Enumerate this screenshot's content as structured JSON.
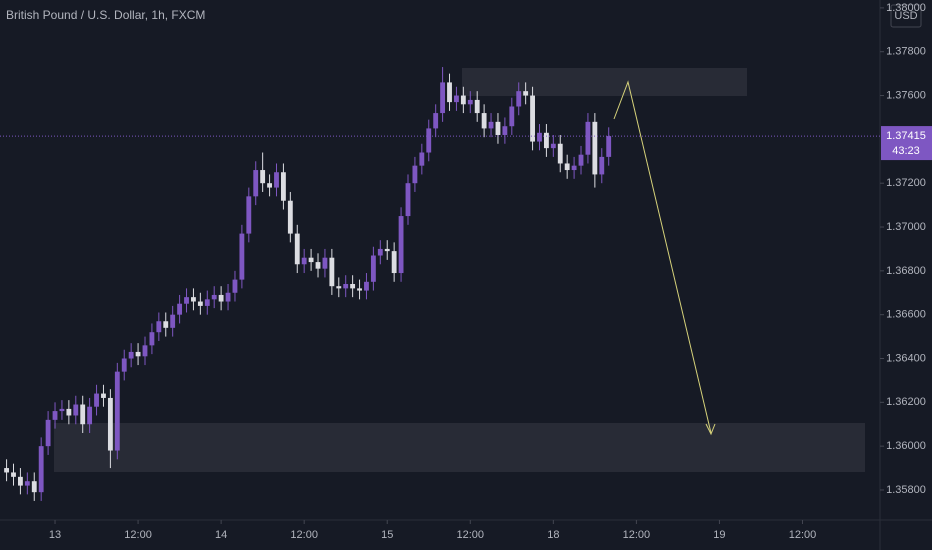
{
  "chart_data": {
    "type": "candlestick",
    "title": "British Pound / U.S. Dollar, 1h, FXCM",
    "currency": "USD",
    "countdown": "43:23",
    "up_color": "#7e57c2",
    "down_color": "#dcdde2",
    "x": [
      -7,
      -6,
      -5,
      -4,
      -3,
      -2,
      -1,
      0,
      1,
      2,
      3,
      4,
      5,
      6,
      7,
      8,
      9,
      10,
      11,
      12,
      13,
      14,
      15,
      16,
      17,
      18,
      19,
      20,
      21,
      22,
      23,
      24,
      25,
      26,
      27,
      28,
      29,
      30,
      31,
      32,
      33,
      34,
      35,
      36,
      37,
      38,
      39,
      40,
      41,
      42,
      43,
      44,
      45,
      46,
      47,
      48,
      49,
      50,
      51,
      52,
      53,
      54,
      55,
      56,
      57,
      58,
      59,
      60,
      61,
      62,
      63,
      64,
      65,
      66,
      67,
      68,
      69,
      70,
      71,
      72,
      73,
      74,
      75,
      76,
      77,
      78,
      79,
      80
    ],
    "open": [
      1.359,
      1.3588,
      1.3586,
      1.3582,
      1.3584,
      1.3579,
      1.36,
      1.3612,
      1.3616,
      1.3617,
      1.3614,
      1.3619,
      1.361,
      1.3618,
      1.3624,
      1.3622,
      1.3598,
      1.3634,
      1.364,
      1.3643,
      1.3641,
      1.3646,
      1.3652,
      1.3657,
      1.3654,
      1.366,
      1.3665,
      1.3668,
      1.3666,
      1.3664,
      1.3667,
      1.3669,
      1.3666,
      1.367,
      1.3676,
      1.3697,
      1.3714,
      1.3726,
      1.372,
      1.3718,
      1.3725,
      1.3712,
      1.3697,
      1.3683,
      1.3686,
      1.3684,
      1.3681,
      1.3686,
      1.3673,
      1.3672,
      1.3674,
      1.3672,
      1.3671,
      1.3675,
      1.3687,
      1.369,
      1.3689,
      1.3679,
      1.3705,
      1.372,
      1.3728,
      1.3734,
      1.3745,
      1.3752,
      1.3766,
      1.3757,
      1.376,
      1.3756,
      1.3758,
      1.3752,
      1.3745,
      1.3748,
      1.3742,
      1.3746,
      1.3755,
      1.3762,
      1.376,
      1.3739,
      1.3743,
      1.3736,
      1.3738,
      1.3729,
      1.3726,
      1.3728,
      1.3733,
      1.3748,
      1.3724,
      1.3732
    ],
    "high": [
      1.3594,
      1.3592,
      1.359,
      1.3588,
      1.3588,
      1.3604,
      1.3616,
      1.362,
      1.3621,
      1.3621,
      1.3623,
      1.3623,
      1.3622,
      1.3628,
      1.3628,
      1.3626,
      1.3638,
      1.3644,
      1.3647,
      1.3647,
      1.365,
      1.3656,
      1.3661,
      1.3661,
      1.3664,
      1.3669,
      1.3672,
      1.3672,
      1.367,
      1.3671,
      1.3673,
      1.3673,
      1.3674,
      1.368,
      1.3701,
      1.3718,
      1.373,
      1.3734,
      1.3724,
      1.3729,
      1.3729,
      1.3716,
      1.3701,
      1.369,
      1.369,
      1.3688,
      1.369,
      1.369,
      1.3677,
      1.3678,
      1.3678,
      1.3676,
      1.3679,
      1.3691,
      1.3694,
      1.3694,
      1.3693,
      1.3709,
      1.3724,
      1.3732,
      1.3738,
      1.3749,
      1.3756,
      1.3773,
      1.377,
      1.3764,
      1.3764,
      1.3762,
      1.3762,
      1.3756,
      1.3752,
      1.3752,
      1.375,
      1.3759,
      1.3766,
      1.3766,
      1.3764,
      1.3747,
      1.3747,
      1.3742,
      1.3742,
      1.3733,
      1.3732,
      1.3737,
      1.3752,
      1.3752,
      1.3736,
      1.37455
    ],
    "low": [
      1.3584,
      1.3582,
      1.3578,
      1.3578,
      1.3575,
      1.3575,
      1.3596,
      1.3608,
      1.3612,
      1.361,
      1.361,
      1.3606,
      1.3606,
      1.3614,
      1.3618,
      1.359,
      1.3594,
      1.363,
      1.3636,
      1.3637,
      1.3637,
      1.3642,
      1.3648,
      1.365,
      1.365,
      1.3656,
      1.3661,
      1.3662,
      1.366,
      1.366,
      1.3663,
      1.3662,
      1.3662,
      1.3666,
      1.3672,
      1.3693,
      1.371,
      1.3716,
      1.3714,
      1.3714,
      1.3708,
      1.3693,
      1.3679,
      1.3679,
      1.368,
      1.3677,
      1.3677,
      1.3669,
      1.3668,
      1.3668,
      1.3668,
      1.3667,
      1.3667,
      1.3671,
      1.3683,
      1.3685,
      1.3675,
      1.3675,
      1.3701,
      1.3716,
      1.3724,
      1.373,
      1.3741,
      1.3748,
      1.3753,
      1.3753,
      1.3752,
      1.3752,
      1.3748,
      1.3741,
      1.3741,
      1.3738,
      1.3738,
      1.3742,
      1.3751,
      1.3756,
      1.3735,
      1.3735,
      1.3732,
      1.3732,
      1.3725,
      1.3722,
      1.3722,
      1.3724,
      1.3729,
      1.3718,
      1.372,
      1.3728
    ],
    "close": [
      1.3588,
      1.3586,
      1.3582,
      1.3584,
      1.3579,
      1.36,
      1.3612,
      1.3616,
      1.3617,
      1.3614,
      1.3619,
      1.361,
      1.3618,
      1.3624,
      1.3622,
      1.3598,
      1.3634,
      1.364,
      1.3643,
      1.3641,
      1.3646,
      1.3652,
      1.3657,
      1.3654,
      1.366,
      1.3665,
      1.3668,
      1.3666,
      1.3664,
      1.3667,
      1.3669,
      1.3666,
      1.367,
      1.3676,
      1.3697,
      1.3714,
      1.3726,
      1.372,
      1.3718,
      1.3725,
      1.3712,
      1.3697,
      1.3683,
      1.3686,
      1.3684,
      1.3681,
      1.3686,
      1.3673,
      1.3672,
      1.3674,
      1.3672,
      1.3671,
      1.3675,
      1.3687,
      1.369,
      1.3689,
      1.3679,
      1.3705,
      1.372,
      1.3728,
      1.3734,
      1.3745,
      1.3752,
      1.3766,
      1.3757,
      1.376,
      1.3756,
      1.3758,
      1.3752,
      1.3745,
      1.3748,
      1.3742,
      1.3746,
      1.3755,
      1.3762,
      1.376,
      1.3739,
      1.3743,
      1.3736,
      1.3738,
      1.3729,
      1.3726,
      1.3728,
      1.3733,
      1.3748,
      1.3724,
      1.3732,
      1.37415
    ],
    "xlim": [
      -7.95,
      119.2
    ],
    "ylim": [
      1.35663,
      1.38036
    ],
    "xticks": [
      {
        "value": 0,
        "label": "13"
      },
      {
        "value": 12,
        "label": "12:00"
      },
      {
        "value": 24,
        "label": "14"
      },
      {
        "value": 36,
        "label": "12:00"
      },
      {
        "value": 48,
        "label": "15"
      },
      {
        "value": 60,
        "label": "12:00"
      },
      {
        "value": 72,
        "label": "18"
      },
      {
        "value": 84,
        "label": "12:00"
      },
      {
        "value": 96,
        "label": "19"
      },
      {
        "value": 108,
        "label": "12:00"
      }
    ],
    "yticks": [
      {
        "value": 1.358,
        "label": "1.35800"
      },
      {
        "value": 1.36,
        "label": "1.36000"
      },
      {
        "value": 1.362,
        "label": "1.36200"
      },
      {
        "value": 1.364,
        "label": "1.36400"
      },
      {
        "value": 1.366,
        "label": "1.36600"
      },
      {
        "value": 1.368,
        "label": "1.36800"
      },
      {
        "value": 1.37,
        "label": "1.37000"
      },
      {
        "value": 1.372,
        "label": "1.37200"
      },
      {
        "value": 1.376,
        "label": "1.37600"
      },
      {
        "value": 1.378,
        "label": "1.37800"
      },
      {
        "value": 1.38,
        "label": "1.38000"
      }
    ],
    "grid": false
  }
}
